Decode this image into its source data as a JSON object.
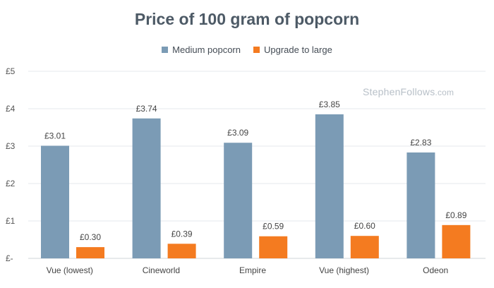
{
  "chart_data": {
    "type": "bar",
    "title": "Price of 100 gram of popcorn",
    "categories": [
      "Vue (lowest)",
      "Cineworld",
      "Empire",
      "Vue (highest)",
      "Odeon"
    ],
    "series": [
      {
        "name": "Medium popcorn",
        "color": "#7b9bb5",
        "values": [
          3.01,
          3.74,
          3.09,
          3.85,
          2.83
        ],
        "labels": [
          "£3.01",
          "£3.74",
          "£3.09",
          "£3.85",
          "£2.83"
        ]
      },
      {
        "name": "Upgrade to large",
        "color": "#f47b20",
        "values": [
          0.3,
          0.39,
          0.59,
          0.6,
          0.89
        ],
        "labels": [
          "£0.30",
          "£0.39",
          "£0.59",
          "£0.60",
          "£0.89"
        ]
      }
    ],
    "ylim": [
      0,
      5
    ],
    "yticks": [
      0,
      1,
      2,
      3,
      4,
      5
    ],
    "ytick_labels": [
      "£-",
      "£1",
      "£2",
      "£3",
      "£4",
      "£5"
    ],
    "xlabel": "",
    "ylabel": "",
    "grid": true,
    "legend_position": "top"
  },
  "watermark": {
    "name": "StephenFollows",
    "domain": ".com"
  }
}
